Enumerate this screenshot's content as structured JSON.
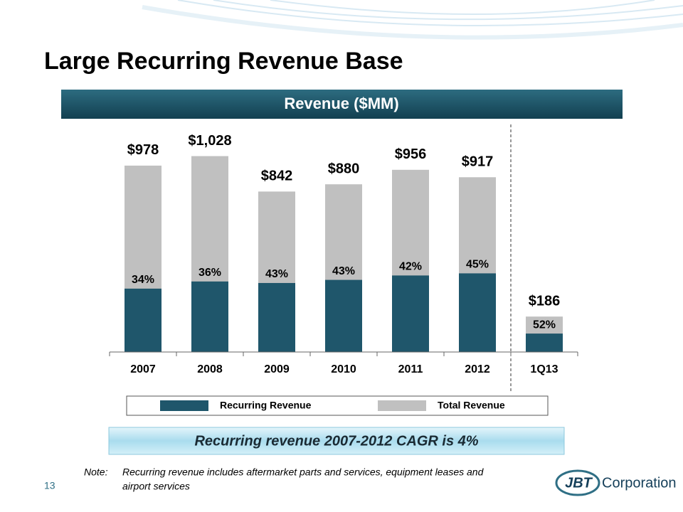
{
  "slide": {
    "title": "Large Recurring Revenue Base",
    "callout": "Recurring revenue 2007-2012 CAGR is 4%",
    "note_label": "Note:",
    "note_line1": "Recurring revenue includes aftermarket parts and services, equipment leases and",
    "note_line2": "airport services",
    "page_number": "13",
    "logo_mark": "JBT",
    "logo_text": "Corporation"
  },
  "chart_data": {
    "type": "overlap-bar",
    "title": "Revenue ($MM)",
    "categories": [
      "2007",
      "2008",
      "2009",
      "2010",
      "2011",
      "2012",
      "1Q13"
    ],
    "series": [
      {
        "name": "Recurring Revenue",
        "color": "#1f566b",
        "values": [
          34,
          36,
          43,
          43,
          42,
          45,
          52
        ],
        "value_labels": [
          "34%",
          "36%",
          "43%",
          "43%",
          "42%",
          "45%",
          "52%"
        ]
      },
      {
        "name": "Total Revenue",
        "color": "#c0c0c0",
        "values": [
          978,
          1028,
          842,
          880,
          956,
          917,
          186
        ],
        "value_labels": [
          "$978",
          "$1,028",
          "$842",
          "$880",
          "$956",
          "$917",
          "$186"
        ]
      }
    ]
  }
}
